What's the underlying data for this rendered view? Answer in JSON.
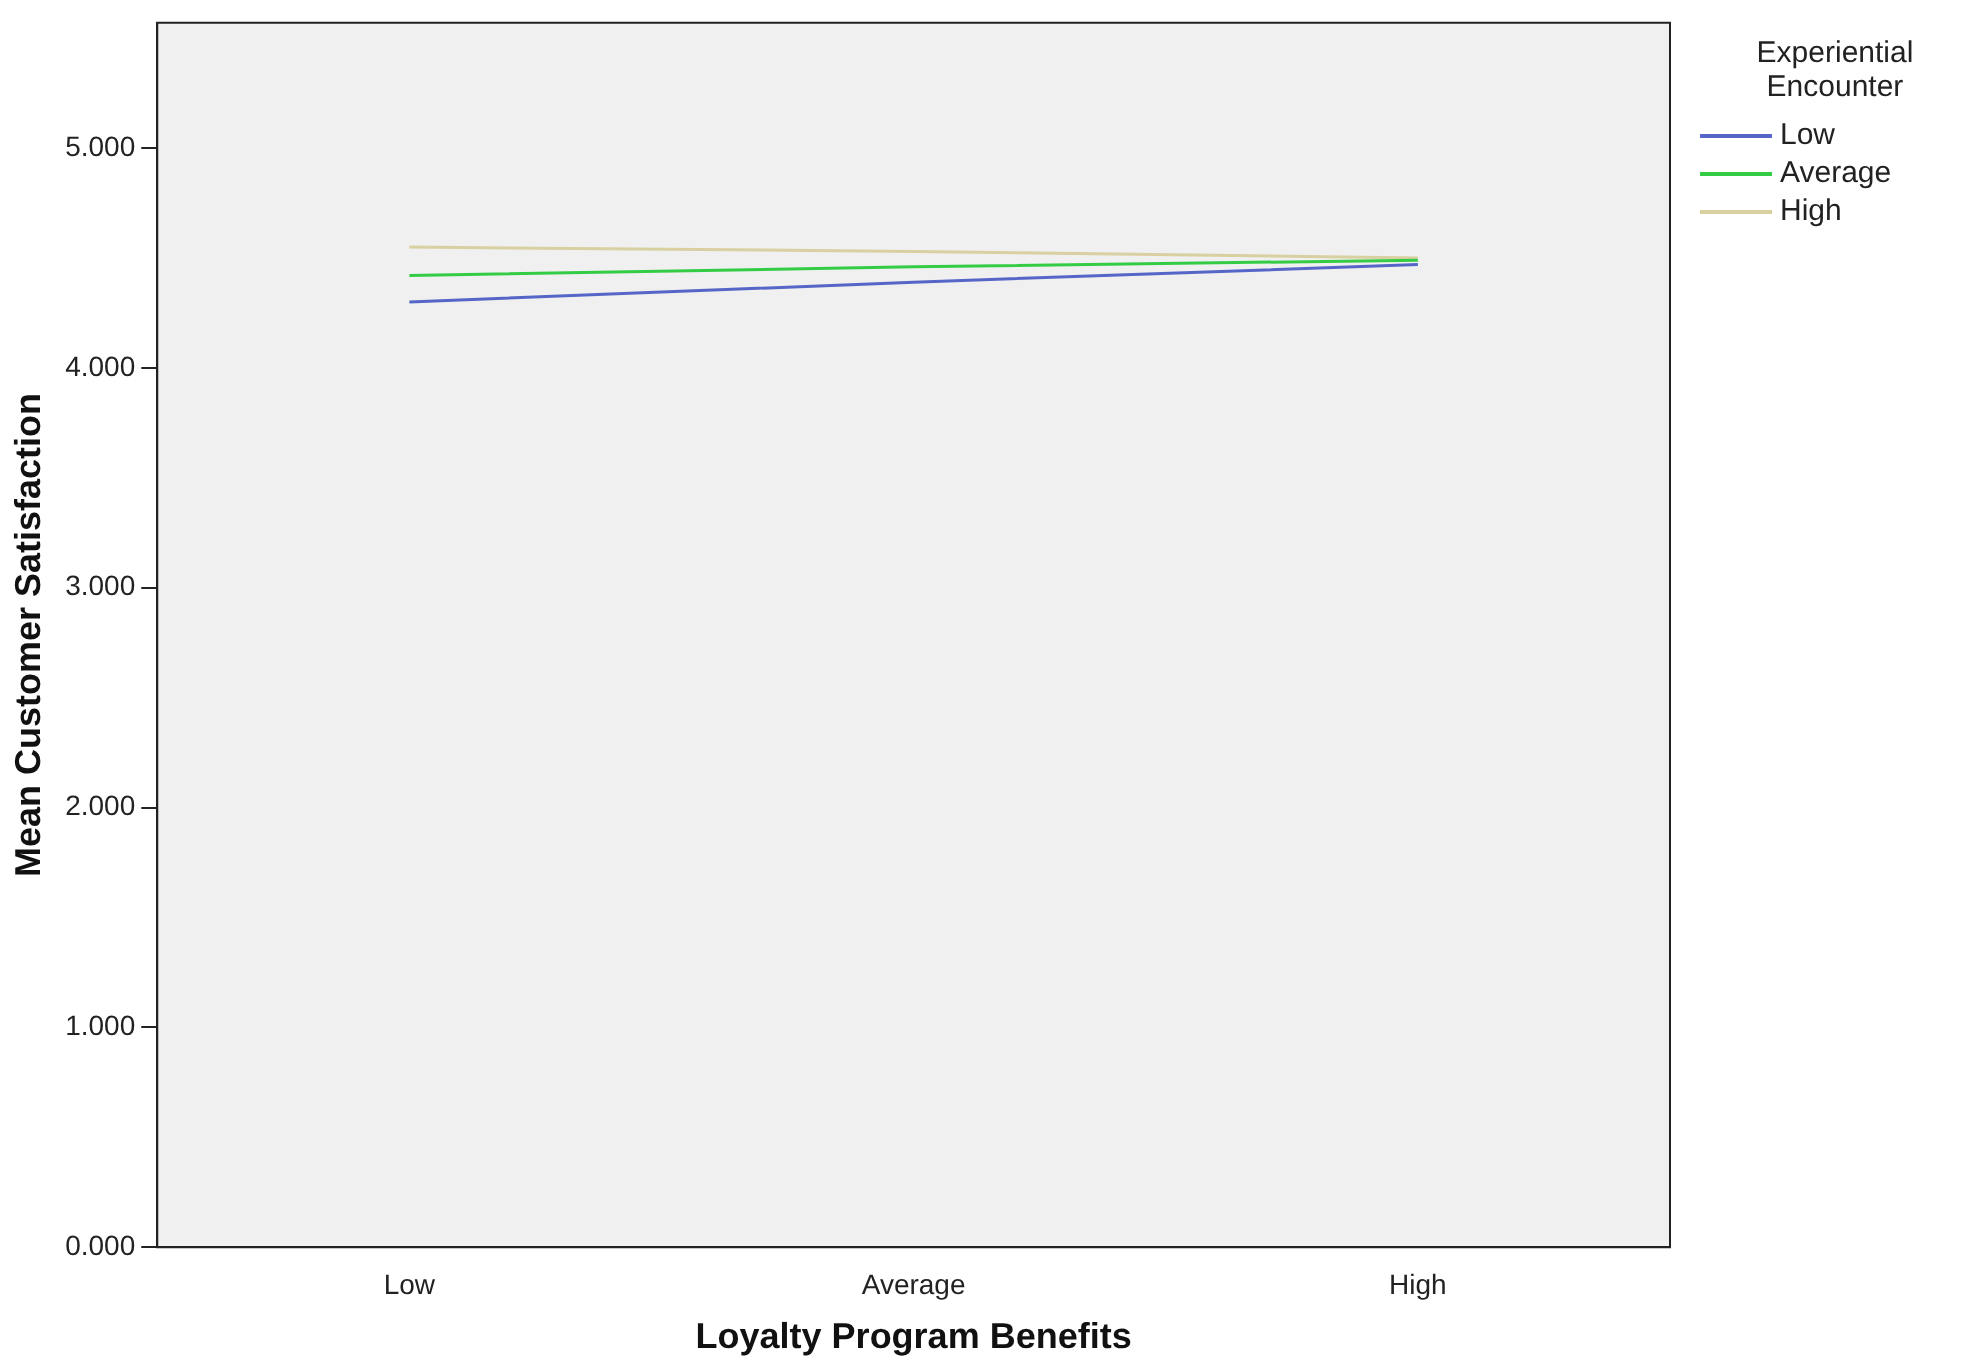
{
  "chart_data": {
    "type": "line",
    "xlabel": "Loyalty Program Benefits",
    "ylabel": "Mean Customer Satisfaction",
    "legend_title": "Experiential Encounter",
    "categories": [
      "Low",
      "Average",
      "High"
    ],
    "series": [
      {
        "name": "Low",
        "color": "#5566c8",
        "values": [
          4.3,
          4.39,
          4.47
        ]
      },
      {
        "name": "Average",
        "color": "#33cc44",
        "values": [
          4.42,
          4.46,
          4.49
        ]
      },
      {
        "name": "High",
        "color": "#d8d0a0",
        "values": [
          4.55,
          4.53,
          4.5
        ]
      }
    ],
    "ylim": [
      0,
      5.57
    ],
    "yticks": [
      {
        "value": 0,
        "label": "0.000"
      },
      {
        "value": 1,
        "label": "1.000"
      },
      {
        "value": 2,
        "label": "2.000"
      },
      {
        "value": 3,
        "label": "3.000"
      },
      {
        "value": 4,
        "label": "4.000"
      },
      {
        "value": 5,
        "label": "5.000"
      }
    ],
    "grid": false,
    "legend": "right",
    "marker": "none",
    "line_style": "solid"
  }
}
